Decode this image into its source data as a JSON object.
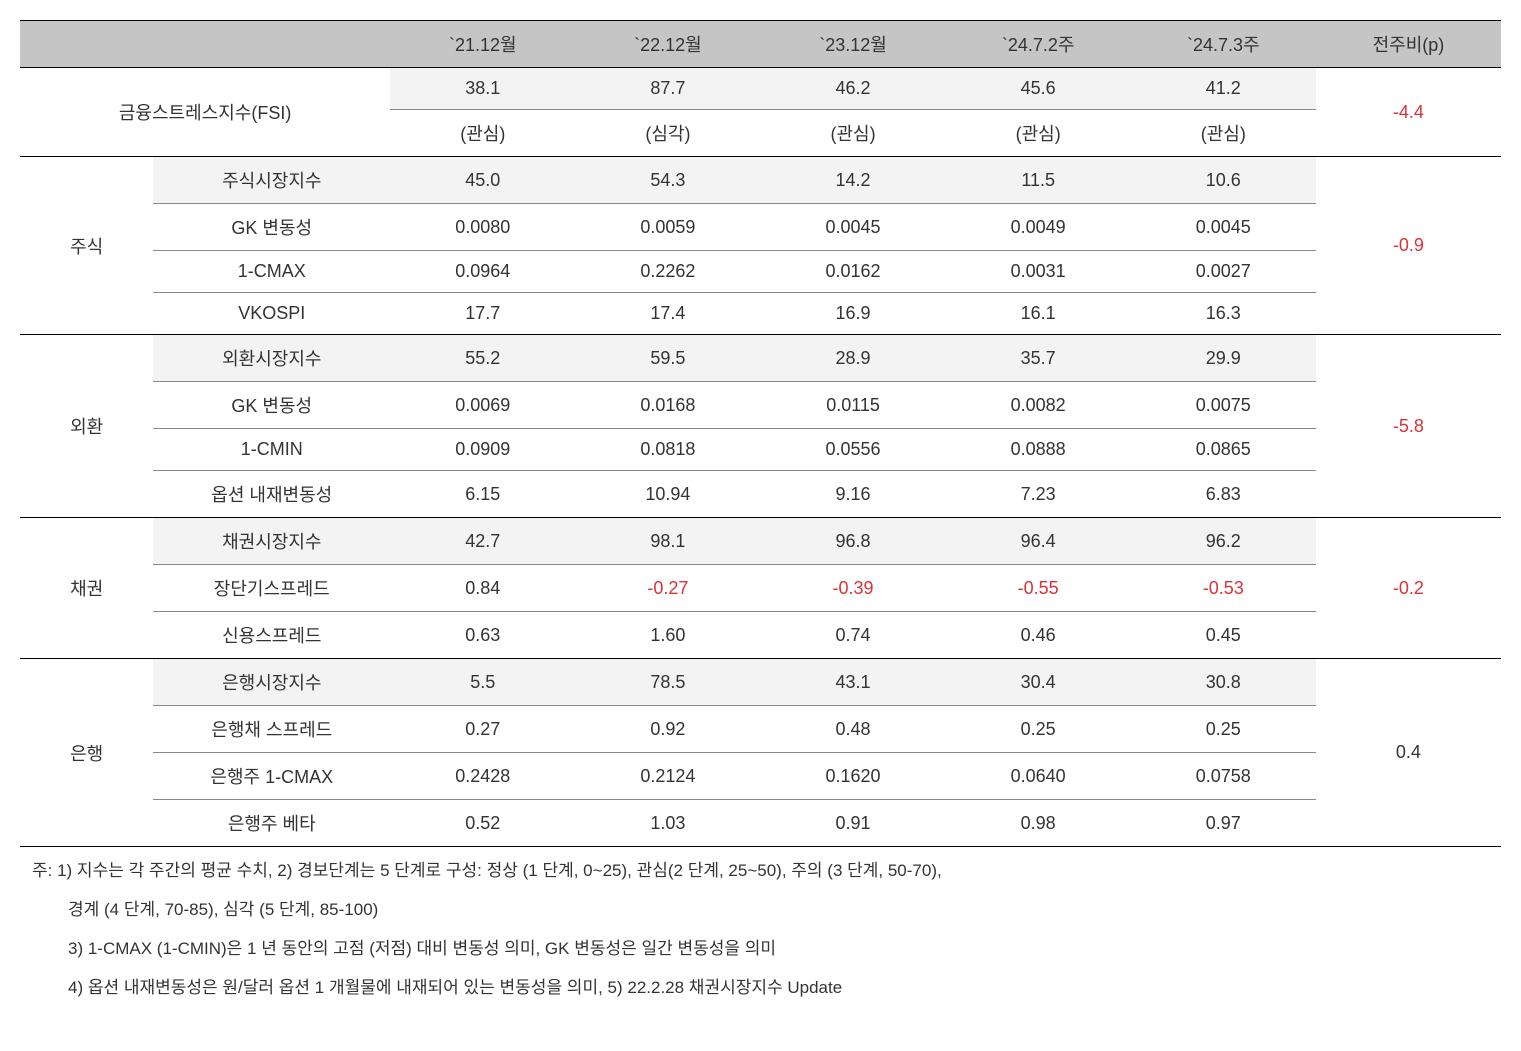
{
  "columns": [
    "`21.12월",
    "`22.12월",
    "`23.12월",
    "`24.7.2주",
    "`24.7.3주",
    "전주비(p)"
  ],
  "fsi": {
    "label": "금융스트레스지수(FSI)",
    "values": [
      "38.1",
      "87.7",
      "46.2",
      "45.6",
      "41.2"
    ],
    "levels": [
      "(관심)",
      "(심각)",
      "(관심)",
      "(관심)",
      "(관심)"
    ],
    "change": "-4.4"
  },
  "sections": [
    {
      "name": "주식",
      "change": "-0.9",
      "change_neg": true,
      "rows": [
        {
          "label": "주식시장지수",
          "values": [
            "45.0",
            "54.3",
            "14.2",
            "11.5",
            "10.6"
          ],
          "shade": true
        },
        {
          "label": "GK 변동성",
          "values": [
            "0.0080",
            "0.0059",
            "0.0045",
            "0.0049",
            "0.0045"
          ]
        },
        {
          "label": "1-CMAX",
          "values": [
            "0.0964",
            "0.2262",
            "0.0162",
            "0.0031",
            "0.0027"
          ]
        },
        {
          "label": "VKOSPI",
          "values": [
            "17.7",
            "17.4",
            "16.9",
            "16.1",
            "16.3"
          ]
        }
      ]
    },
    {
      "name": "외환",
      "change": "-5.8",
      "change_neg": true,
      "rows": [
        {
          "label": "외환시장지수",
          "values": [
            "55.2",
            "59.5",
            "28.9",
            "35.7",
            "29.9"
          ],
          "shade": true
        },
        {
          "label": "GK 변동성",
          "values": [
            "0.0069",
            "0.0168",
            "0.0115",
            "0.0082",
            "0.0075"
          ]
        },
        {
          "label": "1-CMIN",
          "values": [
            "0.0909",
            "0.0818",
            "0.0556",
            "0.0888",
            "0.0865"
          ]
        },
        {
          "label": "옵션 내재변동성",
          "values": [
            "6.15",
            "10.94",
            "9.16",
            "7.23",
            "6.83"
          ]
        }
      ]
    },
    {
      "name": "채권",
      "change": "-0.2",
      "change_neg": true,
      "rows": [
        {
          "label": "채권시장지수",
          "values": [
            "42.7",
            "98.1",
            "96.8",
            "96.4",
            "96.2"
          ],
          "shade": true
        },
        {
          "label": "장단기스프레드",
          "values": [
            "0.84",
            "-0.27",
            "-0.39",
            "-0.55",
            "-0.53"
          ],
          "neg_from": 1
        },
        {
          "label": "신용스프레드",
          "values": [
            "0.63",
            "1.60",
            "0.74",
            "0.46",
            "0.45"
          ]
        }
      ]
    },
    {
      "name": "은행",
      "change": "0.4",
      "change_neg": false,
      "rows": [
        {
          "label": "은행시장지수",
          "values": [
            "5.5",
            "78.5",
            "43.1",
            "30.4",
            "30.8"
          ],
          "shade": true
        },
        {
          "label": "은행채 스프레드",
          "values": [
            "0.27",
            "0.92",
            "0.48",
            "0.25",
            "0.25"
          ]
        },
        {
          "label": "은행주 1-CMAX",
          "values": [
            "0.2428",
            "0.2124",
            "0.1620",
            "0.0640",
            "0.0758"
          ]
        },
        {
          "label": "은행주 베타",
          "values": [
            "0.52",
            "1.03",
            "0.91",
            "0.98",
            "0.97"
          ]
        }
      ]
    }
  ],
  "footnotes": [
    "주: 1) 지수는 각 주간의 평균 수치, 2) 경보단계는 5 단계로 구성: 정상 (1 단계, 0~25), 관심(2 단계, 25~50), 주의 (3 단계, 50-70),",
    "경계 (4 단계, 70-85), 심각 (5 단계, 85-100)",
    "3) 1-CMAX (1-CMIN)은 1 년 동안의 고점 (저점) 대비 변동성 의미, GK 변동성은 일간 변동성을 의미",
    "4) 옵션 내재변동성은 원/달러 옵션 1 개월물에 내재되어 있는 변동성을 의미, 5) 22.2.28 채권시장지수 Update"
  ]
}
